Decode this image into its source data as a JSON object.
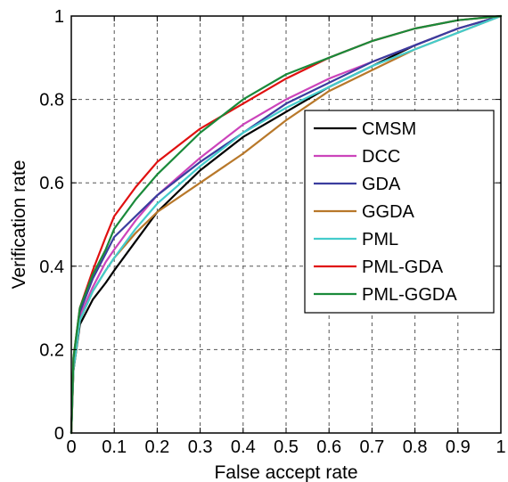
{
  "chart_data": {
    "type": "line",
    "title": "",
    "xlabel": "False accept rate",
    "ylabel": "Verification rate",
    "xlim": [
      0,
      1
    ],
    "ylim": [
      0,
      1
    ],
    "xticks": [
      "0",
      "0.1",
      "0.2",
      "0.3",
      "0.4",
      "0.5",
      "0.6",
      "0.7",
      "0.8",
      "0.9",
      "1"
    ],
    "yticks": [
      "0",
      "0.2",
      "0.4",
      "0.6",
      "0.8",
      "1"
    ],
    "grid": true,
    "legend_position": "right-center",
    "series": [
      {
        "name": "CMSM",
        "color": "#000000",
        "x": [
          0,
          0.005,
          0.02,
          0.05,
          0.08,
          0.1,
          0.15,
          0.2,
          0.3,
          0.4,
          0.5,
          0.6,
          0.7,
          0.8,
          0.9,
          1.0
        ],
        "y": [
          0,
          0.15,
          0.26,
          0.32,
          0.36,
          0.39,
          0.46,
          0.53,
          0.63,
          0.71,
          0.77,
          0.83,
          0.88,
          0.93,
          0.97,
          1.0
        ]
      },
      {
        "name": "DCC",
        "color": "#cc44bb",
        "x": [
          0,
          0.005,
          0.02,
          0.05,
          0.08,
          0.1,
          0.15,
          0.2,
          0.3,
          0.4,
          0.5,
          0.6,
          0.7,
          0.8,
          0.9,
          1.0
        ],
        "y": [
          0,
          0.16,
          0.28,
          0.35,
          0.41,
          0.44,
          0.51,
          0.57,
          0.66,
          0.74,
          0.8,
          0.85,
          0.89,
          0.93,
          0.97,
          1.0
        ]
      },
      {
        "name": "GDA",
        "color": "#3a3d9e",
        "x": [
          0,
          0.005,
          0.02,
          0.05,
          0.08,
          0.1,
          0.15,
          0.2,
          0.3,
          0.4,
          0.5,
          0.6,
          0.7,
          0.8,
          0.9,
          1.0
        ],
        "y": [
          0,
          0.17,
          0.29,
          0.37,
          0.43,
          0.47,
          0.52,
          0.57,
          0.65,
          0.72,
          0.79,
          0.84,
          0.89,
          0.93,
          0.97,
          1.0
        ]
      },
      {
        "name": "GGDA",
        "color": "#b8782a",
        "x": [
          0,
          0.005,
          0.02,
          0.05,
          0.08,
          0.1,
          0.15,
          0.2,
          0.3,
          0.4,
          0.5,
          0.6,
          0.7,
          0.8,
          0.9,
          1.0
        ],
        "y": [
          0,
          0.15,
          0.27,
          0.34,
          0.39,
          0.42,
          0.48,
          0.53,
          0.6,
          0.67,
          0.75,
          0.82,
          0.87,
          0.92,
          0.96,
          1.0
        ]
      },
      {
        "name": "PML",
        "color": "#44cccc",
        "x": [
          0,
          0.005,
          0.02,
          0.05,
          0.08,
          0.1,
          0.15,
          0.2,
          0.3,
          0.4,
          0.5,
          0.6,
          0.7,
          0.8,
          0.9,
          1.0
        ],
        "y": [
          0,
          0.15,
          0.27,
          0.34,
          0.39,
          0.42,
          0.49,
          0.55,
          0.64,
          0.72,
          0.78,
          0.83,
          0.88,
          0.92,
          0.96,
          1.0
        ]
      },
      {
        "name": "PML-GDA",
        "color": "#e01010",
        "x": [
          0,
          0.005,
          0.02,
          0.05,
          0.08,
          0.1,
          0.15,
          0.2,
          0.3,
          0.4,
          0.5,
          0.6,
          0.7,
          0.8,
          0.9,
          1.0
        ],
        "y": [
          0,
          0.18,
          0.3,
          0.39,
          0.47,
          0.52,
          0.59,
          0.65,
          0.73,
          0.79,
          0.85,
          0.9,
          0.94,
          0.97,
          0.99,
          1.0
        ]
      },
      {
        "name": "PML-GGDA",
        "color": "#1a8a3a",
        "x": [
          0,
          0.005,
          0.02,
          0.05,
          0.08,
          0.1,
          0.15,
          0.2,
          0.3,
          0.4,
          0.5,
          0.6,
          0.7,
          0.8,
          0.9,
          1.0
        ],
        "y": [
          0,
          0.18,
          0.3,
          0.38,
          0.44,
          0.49,
          0.56,
          0.62,
          0.72,
          0.8,
          0.86,
          0.9,
          0.94,
          0.97,
          0.99,
          1.0
        ]
      }
    ]
  }
}
